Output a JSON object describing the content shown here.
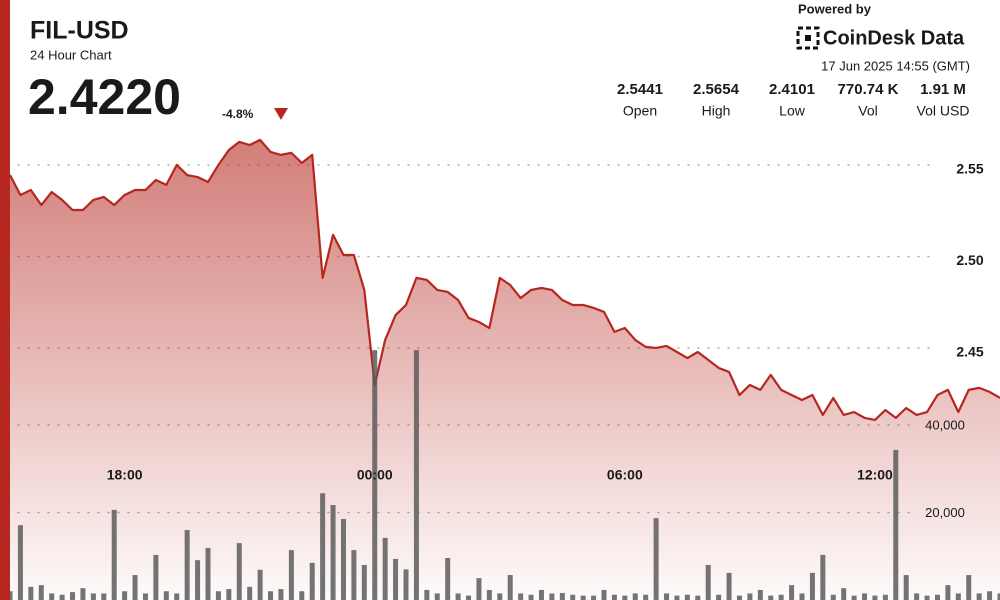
{
  "header": {
    "symbol": "FIL-USD",
    "subtitle": "24 Hour Chart",
    "price": "2.4220",
    "change": "-4.8%",
    "powered_by": "Powered by",
    "brand": "CoinDesk Data",
    "timestamp": "17 Jun 2025 14:55 (GMT)"
  },
  "stats": [
    {
      "value": "2.5441",
      "label": "Open"
    },
    {
      "value": "2.5654",
      "label": "High"
    },
    {
      "value": "2.4101",
      "label": "Low"
    },
    {
      "value": "770.74 K",
      "label": "Vol"
    },
    {
      "value": "1.91 M",
      "label": "Vol USD"
    }
  ],
  "chart_data": [
    {
      "type": "line",
      "color": "#b5271f",
      "grid": true,
      "x": [
        15.25,
        15.5,
        15.75,
        16,
        16.25,
        16.5,
        16.75,
        17,
        17.25,
        17.5,
        17.75,
        18,
        18.25,
        18.5,
        18.75,
        19,
        19.25,
        19.5,
        19.75,
        20,
        20.25,
        20.5,
        20.75,
        21,
        21.25,
        21.5,
        21.75,
        22,
        22.25,
        22.5,
        22.75,
        23,
        23.25,
        23.5,
        23.75,
        24,
        24.25,
        24.5,
        24.75,
        25,
        25.25,
        25.5,
        25.75,
        26,
        26.25,
        26.5,
        26.75,
        27,
        27.25,
        27.5,
        27.75,
        28,
        28.25,
        28.5,
        28.75,
        29,
        29.25,
        29.5,
        29.75,
        30,
        30.25,
        30.5,
        30.75,
        31,
        31.25,
        31.5,
        31.75,
        32,
        32.25,
        32.5,
        32.75,
        33,
        33.25,
        33.5,
        33.75,
        34,
        34.25,
        34.5,
        34.75,
        35,
        35.25,
        35.5,
        35.75,
        36,
        36.25,
        36.5,
        36.75,
        37,
        37.25,
        37.5,
        37.75,
        38,
        38.25,
        38.5,
        38.75,
        39
      ],
      "values": [
        2.5445,
        2.5336,
        2.5363,
        2.5281,
        2.5352,
        2.5309,
        2.5254,
        2.5254,
        2.5309,
        2.5325,
        2.5281,
        2.5336,
        2.5363,
        2.5363,
        2.5418,
        2.5391,
        2.55,
        2.5445,
        2.5434,
        2.5407,
        2.55,
        2.5582,
        2.5626,
        2.5609,
        2.5637,
        2.5571,
        2.5555,
        2.5566,
        2.5511,
        2.5555,
        2.4883,
        2.5118,
        2.5008,
        2.5008,
        2.4817,
        2.4298,
        2.4544,
        2.468,
        2.4735,
        2.4883,
        2.4872,
        2.4817,
        2.4806,
        2.4762,
        2.4664,
        2.4642,
        2.4609,
        2.4883,
        2.4844,
        2.4773,
        2.4817,
        2.4828,
        2.4817,
        2.4762,
        2.4735,
        2.4735,
        2.4719,
        2.4697,
        2.4588,
        2.4609,
        2.4544,
        2.4506,
        2.45,
        2.4511,
        2.4478,
        2.4445,
        2.4478,
        2.4435,
        2.4391,
        2.4369,
        2.4243,
        2.4298,
        2.4271,
        2.4353,
        2.4271,
        2.4243,
        2.4216,
        2.4243,
        2.4134,
        2.4227,
        2.4134,
        2.415,
        2.4118,
        2.4107,
        2.4161,
        2.4118,
        2.4172,
        2.4134,
        2.415,
        2.4243,
        2.4271,
        2.415,
        2.4271,
        2.4282,
        2.426,
        2.4227
      ],
      "xlim": [
        15.25,
        39
      ],
      "xticks": [
        {
          "value": 18,
          "label": "18:00"
        },
        {
          "value": 24,
          "label": "00:00"
        },
        {
          "value": 30,
          "label": "06:00"
        },
        {
          "value": 36,
          "label": "12:00"
        }
      ],
      "ylim": [
        2.3123,
        2.5691
      ],
      "yticks": [
        2.45,
        {
          "value": 2.5,
          "label": "2.50"
        },
        2.55
      ]
    },
    {
      "type": "bar",
      "color": "#5c5c5c",
      "grid": true,
      "x": [
        15.25,
        15.5,
        15.75,
        16,
        16.25,
        16.5,
        16.75,
        17,
        17.25,
        17.5,
        17.75,
        18,
        18.25,
        18.5,
        18.75,
        19,
        19.25,
        19.5,
        19.75,
        20,
        20.25,
        20.5,
        20.75,
        21,
        21.25,
        21.5,
        21.75,
        22,
        22.25,
        22.5,
        22.75,
        23,
        23.25,
        23.5,
        23.75,
        24,
        24.25,
        24.5,
        24.75,
        25,
        25.25,
        25.5,
        25.75,
        26,
        26.25,
        26.5,
        26.75,
        27,
        27.25,
        27.5,
        27.75,
        28,
        28.25,
        28.5,
        28.75,
        29,
        29.25,
        29.5,
        29.75,
        30,
        30.25,
        30.5,
        30.75,
        31,
        31.25,
        31.5,
        31.75,
        32,
        32.25,
        32.5,
        32.75,
        33,
        33.25,
        33.5,
        33.75,
        34,
        34.25,
        34.5,
        34.75,
        35,
        35.25,
        35.5,
        35.75,
        36,
        36.25,
        36.5,
        36.75,
        37,
        37.25,
        37.5,
        37.75,
        38,
        38.25,
        38.5,
        38.75,
        39
      ],
      "values": [
        2000,
        17100,
        3000,
        3400,
        1500,
        1200,
        1800,
        2700,
        1500,
        1500,
        20600,
        2000,
        5700,
        1500,
        10300,
        2000,
        1500,
        16000,
        9100,
        11900,
        2000,
        2500,
        13000,
        3000,
        6900,
        2000,
        2500,
        11400,
        2000,
        8500,
        24400,
        21700,
        18500,
        11400,
        8000,
        57100,
        14200,
        9400,
        7000,
        57100,
        2300,
        1500,
        9600,
        1500,
        1000,
        5000,
        2300,
        1500,
        5700,
        1500,
        1200,
        2300,
        1500,
        1600,
        1200,
        1000,
        1000,
        2300,
        1200,
        1000,
        1500,
        1200,
        18700,
        1500,
        1000,
        1200,
        1000,
        8000,
        1200,
        6200,
        1000,
        1500,
        2300,
        1000,
        1200,
        3400,
        1500,
        6200,
        10300,
        1200,
        2700,
        1000,
        1500,
        1000,
        1200,
        34300,
        5700,
        1500,
        1000,
        1200,
        3400,
        1500,
        5700,
        1500,
        2000,
        1500
      ],
      "xlim": [
        15.25,
        39
      ],
      "ylim": [
        0,
        107400
      ],
      "yticks": [
        {
          "value": 20000,
          "label": "20,000"
        },
        {
          "value": 40000,
          "label": "40,000"
        }
      ]
    }
  ]
}
